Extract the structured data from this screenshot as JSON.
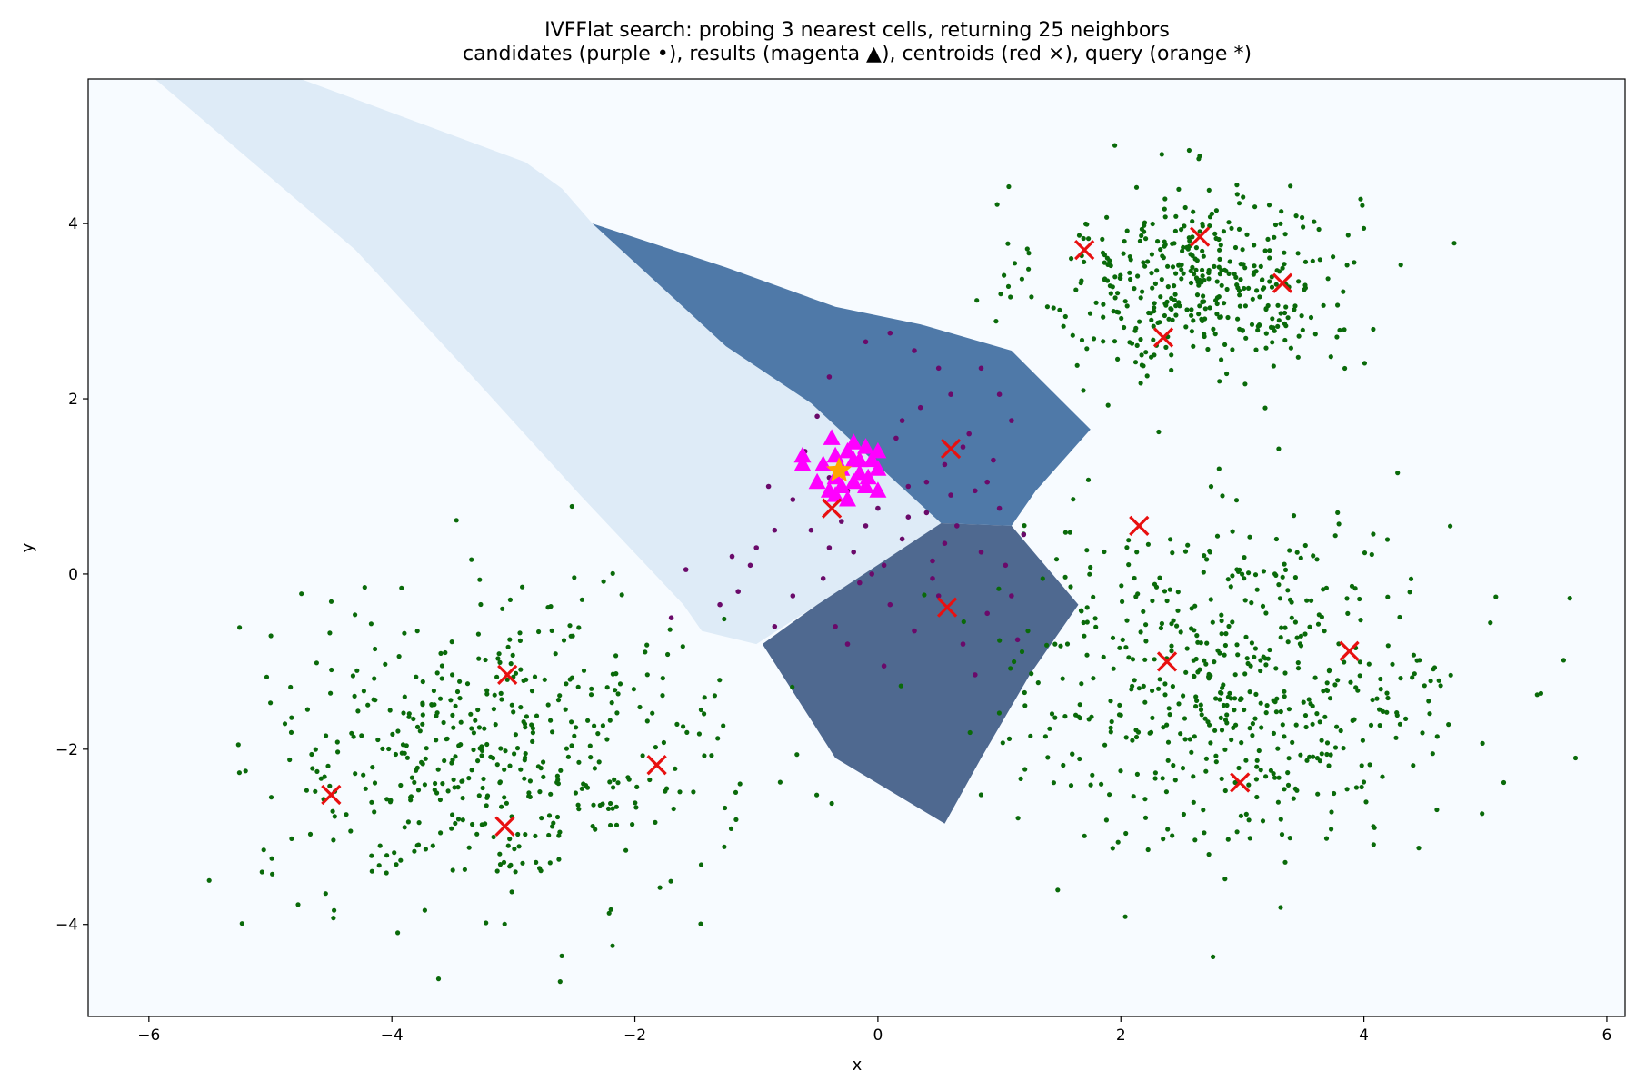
{
  "chart_data": {
    "type": "scatter",
    "title": "IVFFlat search: probing 3 nearest cells, returning 25 neighbors",
    "subtitle": "candidates (purple •), results (magenta ▲), centroids (red ×), query (orange *)",
    "xlabel": "x",
    "ylabel": "y",
    "xlim": [
      -6.5,
      6.15
    ],
    "ylim": [
      -5.05,
      5.65
    ],
    "xticks": [
      -6,
      -4,
      -2,
      0,
      2,
      4,
      6
    ],
    "yticks": [
      -4,
      -2,
      0,
      2,
      4
    ],
    "xtick_labels": [
      "−6",
      "−4",
      "−2",
      "0",
      "2",
      "4",
      "6"
    ],
    "ytick_labels": [
      "−4",
      "−2",
      "0",
      "2",
      "4"
    ],
    "grid": false,
    "legend": "none",
    "colors": {
      "background_cell": "#f7fbff",
      "probed_cell_light": "#deebf7",
      "probed_cell_upper": "#4f79a8",
      "probed_cell_lower": "#4f6990",
      "points": "#0a6a0a",
      "candidates": "#6a0a6a",
      "results": "#ff00ff",
      "centroids": "#e81010",
      "query": "#ffa500"
    },
    "probed_cells": [
      {
        "name": "light-cell",
        "color": "#deebf7",
        "polygon": [
          [
            -5.95,
            5.65
          ],
          [
            -4.75,
            5.65
          ],
          [
            -2.9,
            4.7
          ],
          [
            -2.6,
            4.4
          ],
          [
            -2.35,
            4.0
          ],
          [
            -1.25,
            2.6
          ],
          [
            -0.55,
            1.95
          ],
          [
            0.15,
            1.05
          ],
          [
            0.52,
            0.58
          ],
          [
            0.05,
            0.15
          ],
          [
            -0.5,
            -0.35
          ],
          [
            -1.0,
            -0.8
          ],
          [
            -1.45,
            -0.65
          ],
          [
            -1.6,
            -0.35
          ],
          [
            -2.45,
            0.9
          ],
          [
            -3.4,
            2.35
          ],
          [
            -4.3,
            3.7
          ]
        ]
      },
      {
        "name": "upper-dark-cell",
        "color": "#4f79a8",
        "polygon": [
          [
            -2.35,
            4.0
          ],
          [
            -1.25,
            3.5
          ],
          [
            -0.35,
            3.05
          ],
          [
            0.35,
            2.85
          ],
          [
            1.1,
            2.55
          ],
          [
            1.75,
            1.65
          ],
          [
            1.3,
            0.95
          ],
          [
            1.1,
            0.55
          ],
          [
            0.52,
            0.58
          ],
          [
            0.15,
            1.05
          ],
          [
            -0.55,
            1.95
          ],
          [
            -1.25,
            2.6
          ]
        ]
      },
      {
        "name": "lower-dark-cell",
        "color": "#4f6990",
        "polygon": [
          [
            0.52,
            0.58
          ],
          [
            1.1,
            0.55
          ],
          [
            1.65,
            -0.35
          ],
          [
            1.25,
            -1.15
          ],
          [
            0.85,
            -2.1
          ],
          [
            0.55,
            -2.85
          ],
          [
            -0.35,
            -2.1
          ],
          [
            -0.95,
            -0.8
          ],
          [
            -0.5,
            -0.35
          ],
          [
            0.05,
            0.15
          ]
        ]
      }
    ],
    "series": [
      {
        "name": "candidates",
        "marker": "dot",
        "points": [
          [
            -1.7,
            -0.5
          ],
          [
            -1.58,
            0.05
          ],
          [
            -1.3,
            -0.35
          ],
          [
            -1.15,
            -0.2
          ],
          [
            -1.05,
            0.1
          ],
          [
            -1.0,
            0.3
          ],
          [
            -0.85,
            0.5
          ],
          [
            -0.85,
            -0.6
          ],
          [
            -0.7,
            0.85
          ],
          [
            -0.7,
            -0.25
          ],
          [
            -0.55,
            0.5
          ],
          [
            -0.6,
            1.4
          ],
          [
            -0.45,
            -0.05
          ],
          [
            -0.4,
            0.3
          ],
          [
            -0.4,
            1.1
          ],
          [
            -0.35,
            -0.6
          ],
          [
            -0.3,
            0.6
          ],
          [
            -0.25,
            0.95
          ],
          [
            -0.2,
            0.25
          ],
          [
            -0.15,
            -0.1
          ],
          [
            -0.1,
            0.55
          ],
          [
            -0.05,
            1.3
          ],
          [
            0.0,
            0.75
          ],
          [
            0.05,
            0.1
          ],
          [
            0.1,
            -0.35
          ],
          [
            0.15,
            1.55
          ],
          [
            0.2,
            0.4
          ],
          [
            0.25,
            1.0
          ],
          [
            0.3,
            -0.65
          ],
          [
            0.35,
            1.9
          ],
          [
            0.4,
            0.7
          ],
          [
            0.45,
            0.15
          ],
          [
            0.5,
            -0.25
          ],
          [
            0.55,
            1.25
          ],
          [
            0.6,
            2.05
          ],
          [
            0.65,
            0.55
          ],
          [
            0.7,
            -0.8
          ],
          [
            0.75,
            1.6
          ],
          [
            0.8,
            0.95
          ],
          [
            0.85,
            0.25
          ],
          [
            0.9,
            -0.45
          ],
          [
            0.95,
            1.3
          ],
          [
            1.0,
            0.75
          ],
          [
            1.05,
            0.1
          ],
          [
            1.1,
            1.75
          ],
          [
            1.15,
            -0.75
          ],
          [
            1.2,
            0.45
          ],
          [
            0.9,
            1.05
          ],
          [
            0.7,
            1.45
          ],
          [
            0.4,
            1.05
          ],
          [
            0.3,
            2.55
          ],
          [
            -0.4,
            2.25
          ],
          [
            -0.5,
            1.8
          ],
          [
            -0.1,
            2.65
          ],
          [
            0.1,
            2.75
          ],
          [
            0.5,
            2.35
          ],
          [
            1.0,
            2.05
          ],
          [
            0.25,
            0.65
          ],
          [
            0.6,
            0.9
          ],
          [
            -0.9,
            1.0
          ],
          [
            -1.2,
            0.2
          ],
          [
            -0.25,
            -0.8
          ],
          [
            0.05,
            -1.05
          ],
          [
            0.8,
            -1.15
          ],
          [
            1.1,
            -0.25
          ],
          [
            0.45,
            -0.05
          ],
          [
            -0.05,
            0.0
          ],
          [
            0.2,
            1.75
          ],
          [
            0.85,
            2.35
          ],
          [
            0.55,
            0.35
          ]
        ]
      },
      {
        "name": "results",
        "marker": "triangle",
        "points": [
          [
            -0.62,
            1.35
          ],
          [
            -0.62,
            1.25
          ],
          [
            -0.38,
            1.55
          ],
          [
            -0.35,
            1.35
          ],
          [
            -0.3,
            1.2
          ],
          [
            -0.25,
            1.4
          ],
          [
            -0.2,
            1.5
          ],
          [
            -0.15,
            1.15
          ],
          [
            -0.1,
            1.45
          ],
          [
            -0.05,
            1.3
          ],
          [
            0.0,
            1.4
          ],
          [
            0.0,
            1.2
          ],
          [
            -0.4,
            0.95
          ],
          [
            -0.35,
            0.9
          ],
          [
            -0.3,
            1.0
          ],
          [
            -0.25,
            0.85
          ],
          [
            -0.2,
            1.3
          ],
          [
            -0.15,
            1.3
          ],
          [
            -0.08,
            1.1
          ],
          [
            0.0,
            0.95
          ],
          [
            -0.45,
            1.25
          ],
          [
            -0.5,
            1.05
          ],
          [
            -0.35,
            1.1
          ],
          [
            -0.2,
            1.05
          ],
          [
            -0.1,
            1.0
          ]
        ]
      },
      {
        "name": "centroids",
        "marker": "x",
        "points": [
          [
            -4.5,
            -2.52
          ],
          [
            -3.05,
            -1.15
          ],
          [
            -3.07,
            -2.88
          ],
          [
            -1.82,
            -2.18
          ],
          [
            0.6,
            1.43
          ],
          [
            0.57,
            -0.38
          ],
          [
            -0.38,
            0.75
          ],
          [
            1.7,
            3.7
          ],
          [
            2.65,
            3.85
          ],
          [
            2.35,
            2.7
          ],
          [
            3.33,
            3.32
          ],
          [
            2.15,
            0.55
          ],
          [
            2.38,
            -1.0
          ],
          [
            3.88,
            -0.88
          ],
          [
            2.98,
            -2.38
          ]
        ]
      },
      {
        "name": "query",
        "marker": "star",
        "points": [
          [
            -0.32,
            1.18
          ]
        ]
      }
    ],
    "background_clusters": [
      {
        "center": [
          2.65,
          3.35
        ],
        "spread": [
          0.65,
          0.55
        ],
        "count": 420
      },
      {
        "center": [
          2.95,
          -1.25
        ],
        "spread": [
          0.95,
          0.95
        ],
        "count": 560
      },
      {
        "center": [
          -3.15,
          -2.05
        ],
        "spread": [
          0.95,
          0.85
        ],
        "count": 480
      }
    ]
  }
}
